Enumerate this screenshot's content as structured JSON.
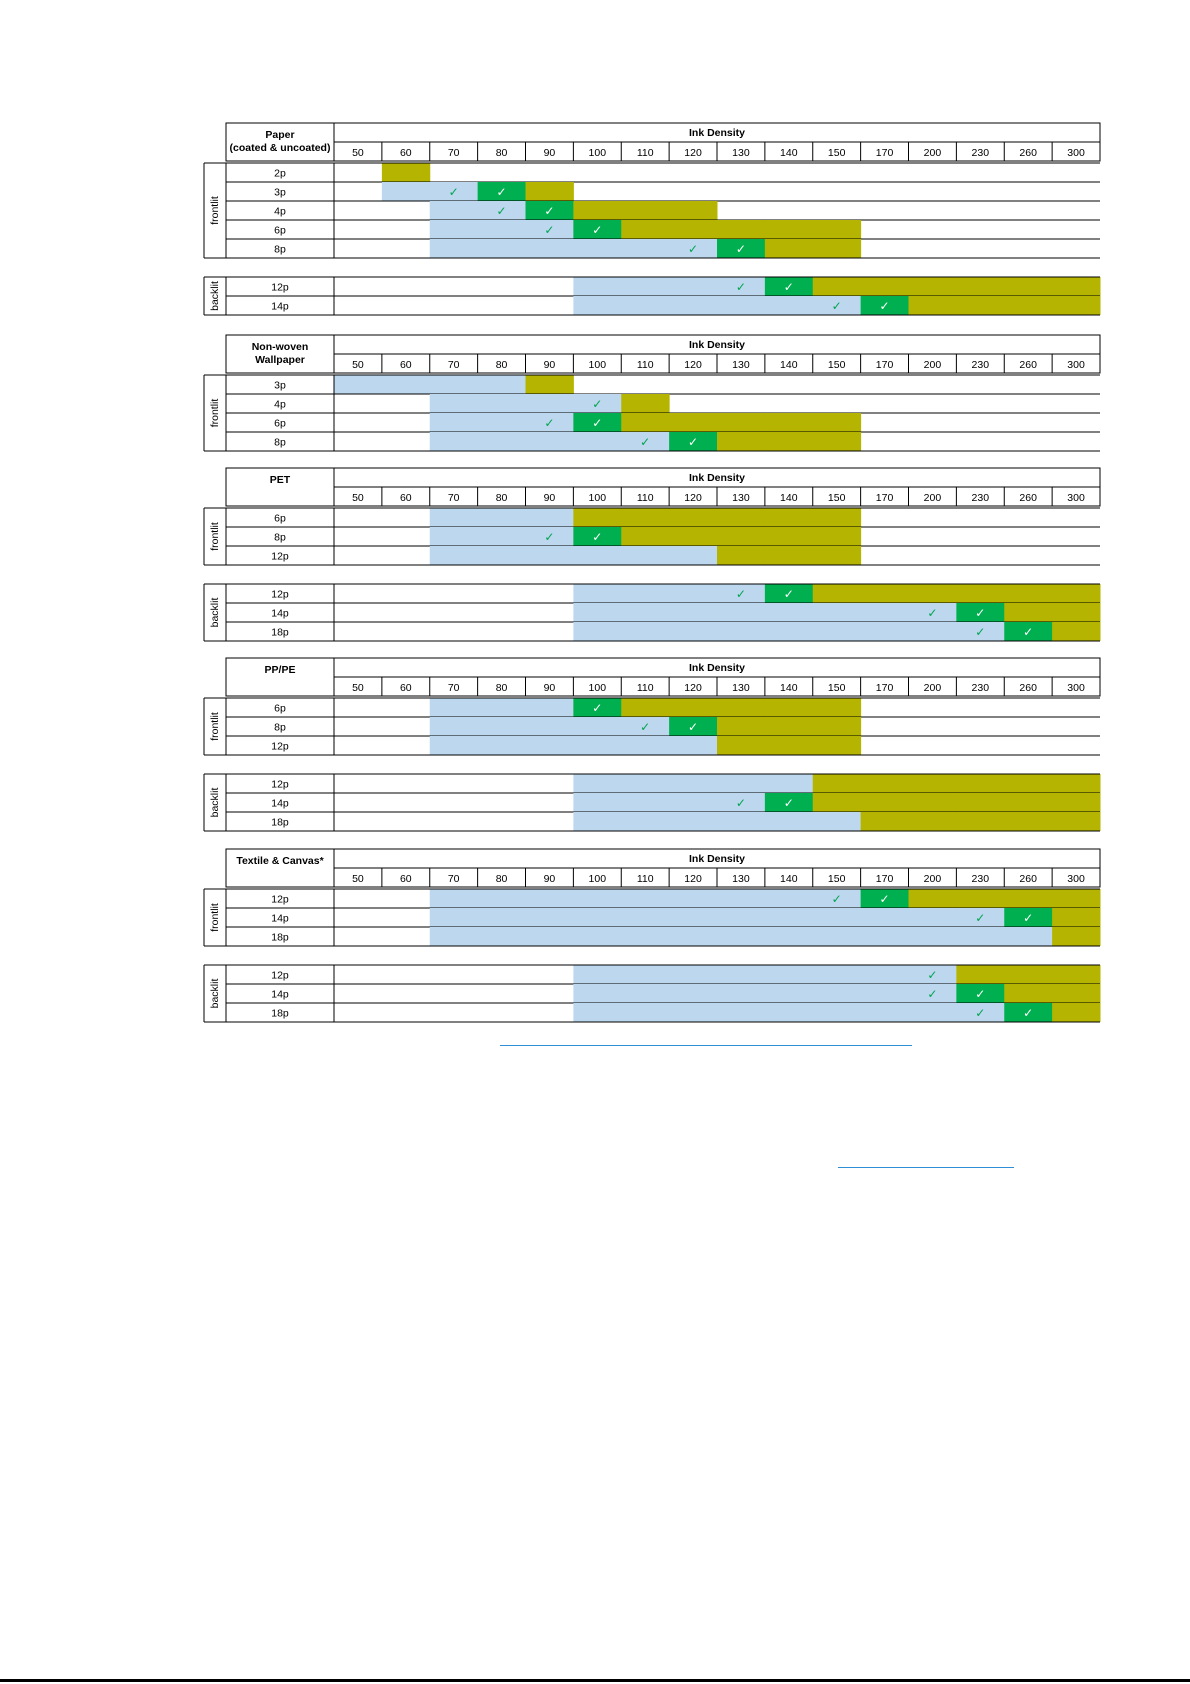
{
  "columns": [
    "50",
    "60",
    "70",
    "80",
    "90",
    "100",
    "110",
    "120",
    "130",
    "140",
    "150",
    "170",
    "200",
    "230",
    "260",
    "300"
  ],
  "header_label": "Ink Density",
  "check_glyph": "✓",
  "colors": {
    "light_blue": "#bdd7ee",
    "green": "#00b050",
    "olive": "#b5b400",
    "check_green": "#00a550",
    "check_white": "#ffffff",
    "grid": "#000000",
    "link_blue": "#2f8fd4"
  },
  "legend_codes": {
    "L": "light blue range",
    "G": "green cell with check",
    "O": "olive range",
    "C": "green check on white/blue",
    "E": "empty"
  },
  "sections": [
    {
      "id": "paper",
      "title": [
        "Paper",
        "(coated & uncoated)"
      ],
      "groups": [
        {
          "label": "frontlit",
          "rows": [
            {
              "label": "2p",
              "cells": "EOEEEEEEEEEEEEEE"
            },
            {
              "label": "3p",
              "cells": "ELCGOEEEEEEEEEEE"
            },
            {
              "label": "4p",
              "cells": "EELCGOOOEEEEEEEE"
            },
            {
              "label": "6p",
              "cells": "EELLCGOOOOOEEEEE"
            },
            {
              "label": "8p",
              "cells": "EELLLLLCGOOEEEEE"
            }
          ]
        },
        {
          "label": "backlit",
          "rows": [
            {
              "label": "12p",
              "cells": "EEEEELLLCGOOOOOO"
            },
            {
              "label": "14p",
              "cells": "EEEEELLLLLCGOOOO"
            }
          ]
        }
      ]
    },
    {
      "id": "nonwoven",
      "title": [
        "Non-woven",
        "Wallpaper"
      ],
      "groups": [
        {
          "label": "frontlit",
          "rows": [
            {
              "label": "3p",
              "cells": "LLLLOEEEEEEEEEEE"
            },
            {
              "label": "4p",
              "cells": "EELLLCOEEEEEEEEE"
            },
            {
              "label": "6p",
              "cells": "EELLCGOOOOOEEEEE"
            },
            {
              "label": "8p",
              "cells": "EELLLLCGOOOEEEEE"
            }
          ]
        }
      ]
    },
    {
      "id": "pet",
      "title": [
        "PET"
      ],
      "groups": [
        {
          "label": "frontlit",
          "rows": [
            {
              "label": "6p",
              "cells": "EELLLOOOOOOEEEEE"
            },
            {
              "label": "8p",
              "cells": "EELLCGOOOOOEEEEE"
            },
            {
              "label": "12p",
              "cells": "EELLLLLLOOOEEEEE"
            }
          ]
        },
        {
          "label": "backlit",
          "rows": [
            {
              "label": "12p",
              "cells": "EEEEELLLCGOOOOOO"
            },
            {
              "label": "14p",
              "cells": "EEEEELLLLLLLCGOO"
            },
            {
              "label": "18p",
              "cells": "EEEEELLLLLLLLCGO"
            }
          ]
        }
      ]
    },
    {
      "id": "pppe",
      "title": [
        "PP/PE"
      ],
      "groups": [
        {
          "label": "frontlit",
          "rows": [
            {
              "label": "6p",
              "cells": "EELLLGOOOOOEEEEE"
            },
            {
              "label": "8p",
              "cells": "EELLLLCGOOOEEEEE"
            },
            {
              "label": "12p",
              "cells": "EELLLLLLOOOEEEEE"
            }
          ]
        },
        {
          "label": "backlit",
          "rows": [
            {
              "label": "12p",
              "cells": "EEEEELLLLLOOOOOO"
            },
            {
              "label": "14p",
              "cells": "EEEEELLLCGOOOOOO"
            },
            {
              "label": "18p",
              "cells": "EEEEELLLLLLOOOOO"
            }
          ]
        }
      ]
    },
    {
      "id": "textile",
      "title": [
        "Textile & Canvas*"
      ],
      "groups": [
        {
          "label": "frontlit",
          "rows": [
            {
              "label": "12p",
              "cells": "EELLLLLLLLCGOOOO"
            },
            {
              "label": "14p",
              "cells": "EELLLLLLLLLLLCGO"
            },
            {
              "label": "18p",
              "cells": "EELLLLLLLLLLLLLO"
            }
          ]
        },
        {
          "label": "backlit",
          "rows": [
            {
              "label": "12p",
              "cells": "EEEEELLLLLLLCOOO"
            },
            {
              "label": "14p",
              "cells": "EEEEELLLLLLLCGOO"
            },
            {
              "label": "18p",
              "cells": "EEEEELLLLLLLLCGO"
            }
          ]
        }
      ]
    }
  ]
}
